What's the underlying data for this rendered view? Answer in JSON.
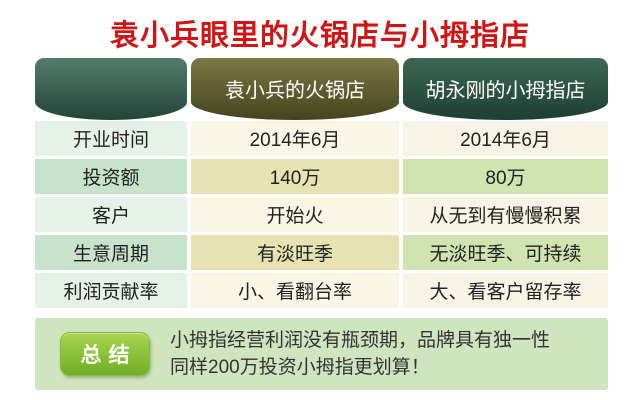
{
  "title": "袁小兵眼里的火锅店与小拇指店",
  "table": {
    "header": {
      "col1": "",
      "col2": "袁小兵的火锅店",
      "col3": "胡永刚的小拇指店"
    },
    "rows": [
      {
        "label": "开业时间",
        "hotpot": "2014年6月",
        "xiaomuzhi": "2014年6月"
      },
      {
        "label": "投资额",
        "hotpot": "140万",
        "xiaomuzhi": "80万"
      },
      {
        "label": "客户",
        "hotpot": "开始火",
        "xiaomuzhi": "从无到有慢慢积累"
      },
      {
        "label": "生意周期",
        "hotpot": "有淡旺季",
        "xiaomuzhi": "无淡旺季、可持续"
      },
      {
        "label": "利润贡献率",
        "hotpot": "小、看翻台率",
        "xiaomuzhi": "大、看客户留存率"
      }
    ]
  },
  "summary": {
    "badge": "总结",
    "line1": "小拇指经营利润没有瓶颈期，品牌具有独一性",
    "line2": "同样200万投资小拇指更划算！"
  },
  "colors": {
    "title_red": "#d11414",
    "header_teal_top": "#517c6a",
    "header_teal_bottom": "#23443a",
    "header_olive_top": "#7a7843",
    "header_olive_bottom": "#46441f",
    "label_odd": "#e6f2e8",
    "label_even": "#c7e3cc",
    "mid_odd": "#f9f6e6",
    "mid_even": "#e6e2b1",
    "right_odd": "#f7f4e5",
    "right_even": "#cfe4b0",
    "summary_bg": "#cfe5c0",
    "badge_green_top": "#a9d54f",
    "badge_green_bottom": "#6fae24"
  }
}
